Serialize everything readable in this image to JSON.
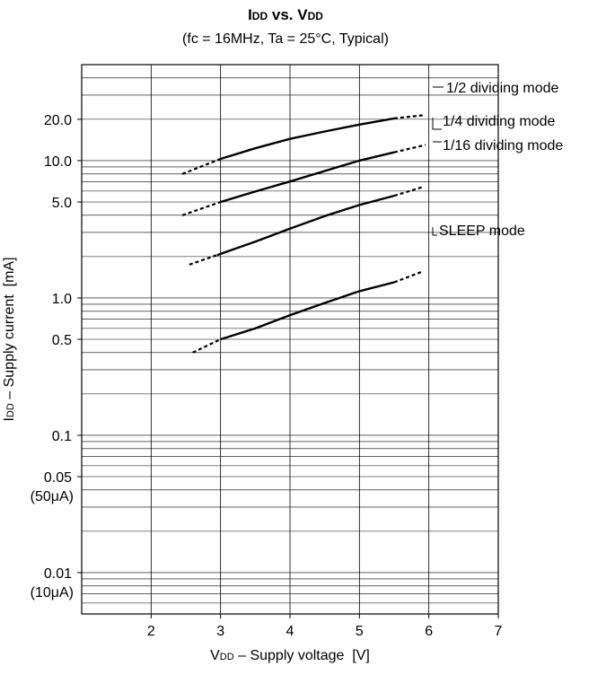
{
  "chart_data": {
    "type": "line",
    "title": "IDD vs. VDD",
    "title_parts": {
      "i_main": "I",
      "i_sub": "DD",
      "vs": " vs. ",
      "v_main": "V",
      "v_sub": "DD"
    },
    "subtitle": "(fc = 16MHz, Ta = 25°C, Typical)",
    "xlabel": "VDD – Supply voltage  [V]",
    "xlabel_parts": {
      "main": "V",
      "sub": "DD",
      "rest": " – Supply voltage  [V]"
    },
    "ylabel": "IDD – Supply current  [mA]",
    "ylabel_parts": {
      "main": "I",
      "sub": "DD",
      "rest": " – Supply current  [mA]"
    },
    "x_scale": "linear",
    "y_scale": "log",
    "xlim": [
      1,
      7
    ],
    "ylim": [
      0.005,
      50
    ],
    "grid": true,
    "x_ticks": [
      {
        "value": 2,
        "label": "2"
      },
      {
        "value": 3,
        "label": "3"
      },
      {
        "value": 4,
        "label": "4"
      },
      {
        "value": 5,
        "label": "5"
      },
      {
        "value": 6,
        "label": "6"
      },
      {
        "value": 7,
        "label": "7"
      }
    ],
    "y_ticks": [
      {
        "value": 20,
        "label": "20.0"
      },
      {
        "value": 10,
        "label": "10.0"
      },
      {
        "value": 5,
        "label": "5.0"
      },
      {
        "value": 1,
        "label": "1.0"
      },
      {
        "value": 0.5,
        "label": "0.5"
      },
      {
        "value": 0.1,
        "label": "0.1"
      },
      {
        "value": 0.05,
        "label": "0.05",
        "sublabel": "(50μA)"
      },
      {
        "value": 0.01,
        "label": "0.01",
        "sublabel": "(10μA)"
      }
    ],
    "series": [
      {
        "name": "1/2 dividing mode",
        "solid": {
          "x": [
            3.0,
            3.5,
            4.0,
            4.5,
            5.0,
            5.5
          ],
          "y": [
            10.3,
            12.3,
            14.4,
            16.3,
            18.3,
            20.3
          ]
        },
        "dashed_low": {
          "x": [
            2.45,
            3.0
          ],
          "y": [
            8.0,
            10.3
          ]
        },
        "dashed_high": {
          "x": [
            5.5,
            5.95
          ],
          "y": [
            20.3,
            21.5
          ]
        }
      },
      {
        "name": "1/4 dividing mode",
        "solid": {
          "x": [
            3.0,
            3.5,
            4.0,
            4.5,
            5.0,
            5.5
          ],
          "y": [
            5.0,
            5.95,
            7.05,
            8.4,
            10.0,
            11.5
          ]
        },
        "dashed_low": {
          "x": [
            2.45,
            3.0
          ],
          "y": [
            4.0,
            5.0
          ]
        },
        "dashed_high": {
          "x": [
            5.5,
            5.95
          ],
          "y": [
            11.5,
            13.0
          ]
        }
      },
      {
        "name": "1/16 dividing mode",
        "solid": {
          "x": [
            2.95,
            3.5,
            4.0,
            4.5,
            5.0,
            5.5
          ],
          "y": [
            2.05,
            2.57,
            3.2,
            3.95,
            4.75,
            5.55
          ]
        },
        "dashed_low": {
          "x": [
            2.55,
            2.95
          ],
          "y": [
            1.75,
            2.05
          ]
        },
        "dashed_high": {
          "x": [
            5.5,
            5.9
          ],
          "y": [
            5.55,
            6.4
          ]
        }
      },
      {
        "name": "SLEEP mode",
        "solid": {
          "x": [
            3.0,
            3.5,
            4.0,
            4.5,
            5.0,
            5.5
          ],
          "y": [
            0.5,
            0.6,
            0.75,
            0.92,
            1.12,
            1.3
          ]
        },
        "dashed_low": {
          "x": [
            2.6,
            3.0
          ],
          "y": [
            0.4,
            0.5
          ]
        },
        "dashed_high": {
          "x": [
            5.5,
            5.9
          ],
          "y": [
            1.3,
            1.55
          ]
        }
      }
    ]
  }
}
